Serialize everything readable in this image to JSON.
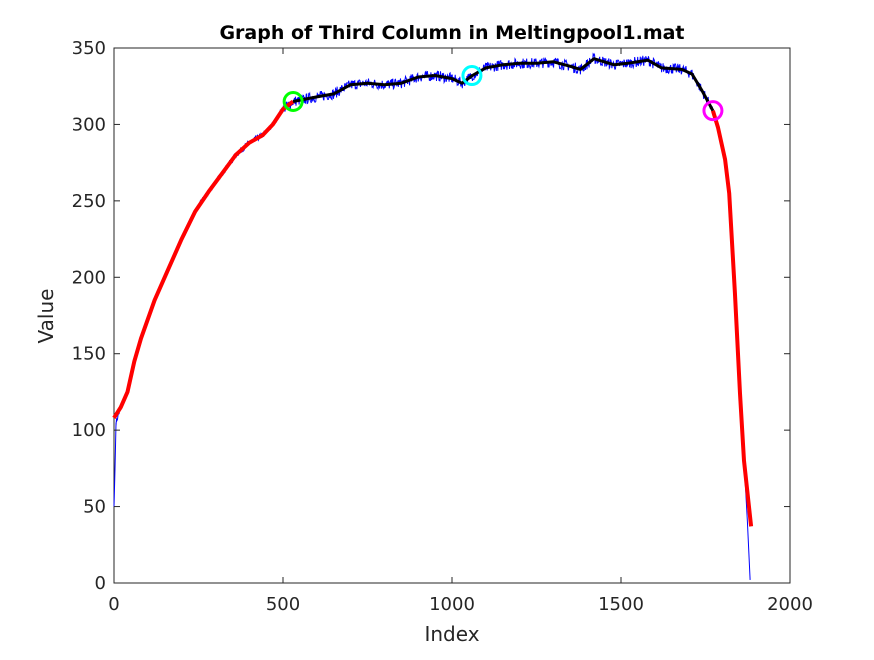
{
  "chart_data": {
    "type": "line",
    "title": "Graph of Third Column in Meltingpool1.mat",
    "xlabel": "Index",
    "ylabel": "Value",
    "xlim": [
      0,
      2000
    ],
    "ylim": [
      0,
      350
    ],
    "xticks": [
      0,
      500,
      1000,
      1500,
      2000
    ],
    "yticks": [
      0,
      50,
      100,
      150,
      200,
      250,
      300,
      350
    ],
    "grid": false,
    "series": [
      {
        "role": "raw",
        "color": "#0000ff",
        "points": [
          [
            0,
            50
          ],
          [
            3,
            75
          ],
          [
            6,
            105
          ],
          [
            20,
            115
          ],
          [
            40,
            125
          ],
          [
            60,
            145
          ],
          [
            80,
            160
          ],
          [
            120,
            185
          ],
          [
            160,
            205
          ],
          [
            200,
            225
          ],
          [
            240,
            243
          ],
          [
            280,
            256
          ],
          [
            320,
            268
          ],
          [
            360,
            280
          ],
          [
            400,
            288
          ],
          [
            440,
            293
          ],
          [
            470,
            300
          ],
          [
            500,
            310
          ],
          [
            530,
            315
          ],
          [
            600,
            318
          ],
          [
            650,
            320
          ],
          [
            700,
            326
          ],
          [
            750,
            327
          ],
          [
            800,
            326
          ],
          [
            850,
            327
          ],
          [
            900,
            331
          ],
          [
            950,
            332
          ],
          [
            1000,
            330
          ],
          [
            1030,
            327
          ],
          [
            1060,
            332
          ],
          [
            1100,
            337
          ],
          [
            1150,
            339
          ],
          [
            1200,
            340
          ],
          [
            1250,
            340
          ],
          [
            1300,
            341
          ],
          [
            1350,
            338
          ],
          [
            1380,
            336
          ],
          [
            1420,
            343
          ],
          [
            1450,
            341
          ],
          [
            1480,
            339
          ],
          [
            1520,
            340
          ],
          [
            1580,
            342
          ],
          [
            1620,
            337
          ],
          [
            1680,
            336
          ],
          [
            1710,
            333
          ],
          [
            1740,
            322
          ],
          [
            1772,
            309
          ],
          [
            1787,
            298
          ],
          [
            1808,
            277
          ],
          [
            1820,
            255
          ],
          [
            1837,
            190
          ],
          [
            1852,
            124
          ],
          [
            1864,
            80
          ],
          [
            1874,
            40
          ],
          [
            1882,
            2
          ]
        ]
      },
      {
        "role": "fit-rise",
        "color": "#ff0000",
        "points": [
          [
            0,
            108
          ],
          [
            20,
            115
          ],
          [
            40,
            125
          ],
          [
            60,
            145
          ],
          [
            80,
            160
          ],
          [
            120,
            185
          ],
          [
            160,
            205
          ],
          [
            200,
            225
          ],
          [
            240,
            243
          ],
          [
            280,
            256
          ],
          [
            320,
            268
          ],
          [
            360,
            280
          ],
          [
            400,
            288
          ],
          [
            440,
            293
          ],
          [
            470,
            300
          ],
          [
            500,
            310
          ],
          [
            530,
            315
          ]
        ]
      },
      {
        "role": "fit-plateau",
        "color": "#000000",
        "points": [
          [
            530,
            315
          ],
          [
            600,
            318
          ],
          [
            650,
            320
          ],
          [
            700,
            326
          ],
          [
            750,
            327
          ],
          [
            800,
            326
          ],
          [
            850,
            327
          ],
          [
            900,
            331
          ],
          [
            950,
            332
          ],
          [
            1000,
            330
          ],
          [
            1030,
            327
          ],
          [
            1060,
            332
          ],
          [
            1100,
            337
          ],
          [
            1150,
            339
          ],
          [
            1200,
            340
          ],
          [
            1250,
            340
          ],
          [
            1300,
            341
          ],
          [
            1350,
            338
          ],
          [
            1380,
            336
          ],
          [
            1420,
            343
          ],
          [
            1450,
            341
          ],
          [
            1480,
            339
          ],
          [
            1520,
            340
          ],
          [
            1580,
            342
          ],
          [
            1620,
            337
          ],
          [
            1680,
            336
          ],
          [
            1710,
            333
          ],
          [
            1740,
            322
          ],
          [
            1772,
            309
          ]
        ]
      },
      {
        "role": "fit-fall",
        "color": "#ff0000",
        "points": [
          [
            1772,
            309
          ],
          [
            1787,
            298
          ],
          [
            1808,
            277
          ],
          [
            1820,
            255
          ],
          [
            1837,
            190
          ],
          [
            1852,
            124
          ],
          [
            1864,
            80
          ],
          [
            1885,
            37
          ]
        ]
      }
    ],
    "markers": [
      {
        "shape": "circle",
        "color": "#00ff00",
        "x": 530,
        "y": 315
      },
      {
        "shape": "circle",
        "color": "#00ffff",
        "x": 1059,
        "y": 332
      },
      {
        "shape": "circle",
        "color": "#ff00ff",
        "x": 1772,
        "y": 309
      }
    ]
  }
}
